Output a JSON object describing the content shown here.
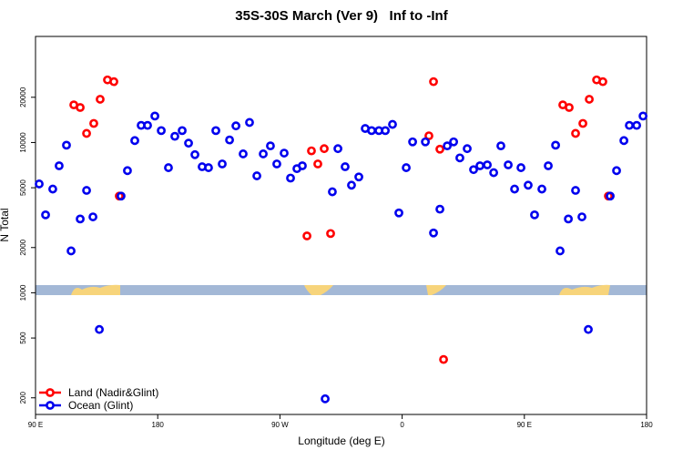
{
  "chart_data": {
    "type": "scatter",
    "title": "35S-30S March (Ver 9)   Inf to -Inf",
    "xlabel": "Longitude (deg E)",
    "ylabel": "N Total",
    "xlim": [
      90,
      540
    ],
    "xticks": [
      {
        "value": 90,
        "label": "90 E"
      },
      {
        "value": 180,
        "label": "180"
      },
      {
        "value": 270,
        "label": "90 W"
      },
      {
        "value": 360,
        "label": "0"
      },
      {
        "value": 450,
        "label": "90 E"
      },
      {
        "value": 540,
        "label": "180"
      }
    ],
    "ylim": [
      155,
      50800
    ],
    "yticks": [
      200,
      500,
      1000,
      2000,
      5000,
      10000,
      20000
    ],
    "ylog": true,
    "legend": "bottom-left",
    "series": [
      {
        "name": "Land (Nadir&Glint)",
        "color": "#ff0000",
        "x": [
          118.2,
          122.9,
          127.6,
          132.9,
          137.6,
          143.0,
          147.7,
          151.7,
          289.9,
          293.2,
          297.9,
          302.6,
          307.3,
          379.7,
          383.1,
          387.8,
          390.5,
          478.3,
          483.0,
          487.7,
          493.1,
          497.8,
          503.2,
          507.8,
          511.9
        ],
        "values": [
          17800,
          17100,
          11500,
          13400,
          19400,
          26100,
          25400,
          4400,
          2390,
          8800,
          7200,
          9100,
          2480,
          11080,
          25400,
          9030,
          360,
          17800,
          17100,
          11500,
          13400,
          19400,
          26100,
          25400,
          4400
        ]
      },
      {
        "name": "Ocean (Glint)",
        "color": "#0000ee",
        "x": [
          92.7,
          97.4,
          102.7,
          107.4,
          112.8,
          116.2,
          122.9,
          127.6,
          132.3,
          137.0,
          153.0,
          157.7,
          163.1,
          167.8,
          172.5,
          177.9,
          182.6,
          187.9,
          192.6,
          198.0,
          202.7,
          207.4,
          212.7,
          217.4,
          222.8,
          227.5,
          232.9,
          237.6,
          242.9,
          247.6,
          253.0,
          257.7,
          263.0,
          267.7,
          273.1,
          277.8,
          282.5,
          286.5,
          303.3,
          308.6,
          312.7,
          318.0,
          322.7,
          328.1,
          332.8,
          337.5,
          342.9,
          347.6,
          352.9,
          357.6,
          363.0,
          367.7,
          377.1,
          383.1,
          387.8,
          393.2,
          397.9,
          402.5,
          407.9,
          412.6,
          417.3,
          422.7,
          427.4,
          432.7,
          438.1,
          442.8,
          447.5,
          452.8,
          457.5,
          462.9,
          467.6,
          473.0,
          476.3,
          482.4,
          487.7,
          492.4,
          497.1,
          513.2,
          517.9,
          523.3,
          527.3,
          532.7,
          537.4
        ],
        "values": [
          5300,
          3300,
          4900,
          7000,
          9600,
          1900,
          3100,
          4800,
          3200,
          570,
          4400,
          6500,
          10300,
          13000,
          13000,
          15000,
          12000,
          6800,
          11000,
          12000,
          9900,
          8300,
          6900,
          6800,
          12000,
          7200,
          10400,
          12900,
          8400,
          13600,
          6000,
          8400,
          9500,
          7200,
          8500,
          5800,
          6700,
          7000,
          197,
          4700,
          9100,
          6900,
          5200,
          5900,
          12400,
          12000,
          12000,
          12000,
          13200,
          3400,
          6800,
          10100,
          10100,
          2500,
          3600,
          9500,
          10100,
          7900,
          9100,
          6600,
          7000,
          7100,
          6300,
          9500,
          7100,
          4900,
          6800,
          5200,
          3300,
          4900,
          7000,
          9600,
          1900,
          3100,
          4800,
          3200,
          570,
          4400,
          6500,
          10300,
          13000,
          13000,
          15000
        ]
      }
    ]
  }
}
